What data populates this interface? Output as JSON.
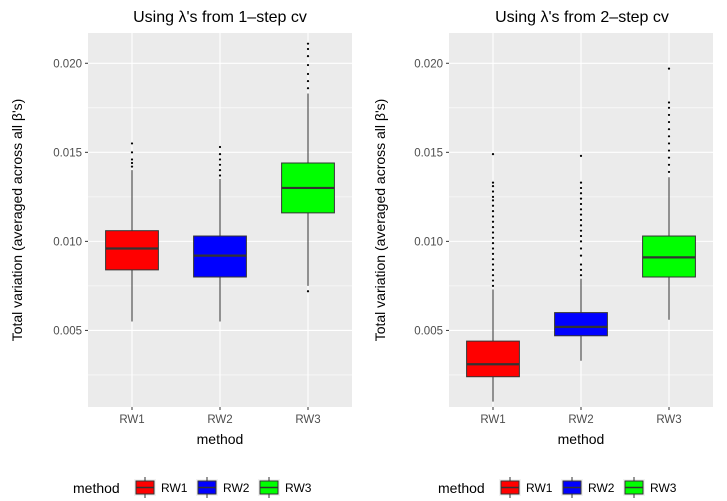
{
  "chart_data": [
    {
      "type": "box",
      "title": "Using λ's from 1–step cv",
      "xlabel": "method",
      "ylabel": "Total variation (averaged across all β's)",
      "ylim": [
        0.0007,
        0.0217
      ],
      "yticks": [
        0.005,
        0.01,
        0.015,
        0.02
      ],
      "ytick_labels": [
        "0.005",
        "0.010",
        "0.015",
        "0.020"
      ],
      "grid": true,
      "categories": [
        "RW1",
        "RW2",
        "RW3"
      ],
      "boxes": [
        {
          "name": "RW1",
          "color": "#ff0000",
          "whisker_low": 0.0055,
          "q1": 0.0084,
          "median": 0.0096,
          "q3": 0.0106,
          "whisker_high": 0.014,
          "outliers": [
            0.0142,
            0.0144,
            0.0146,
            0.015,
            0.0155
          ]
        },
        {
          "name": "RW2",
          "color": "#0000ff",
          "whisker_low": 0.0055,
          "q1": 0.008,
          "median": 0.0092,
          "q3": 0.0103,
          "whisker_high": 0.0135,
          "outliers": [
            0.0137,
            0.014,
            0.0143,
            0.0146,
            0.0149,
            0.0153
          ]
        },
        {
          "name": "RW3",
          "color": "#00ff00",
          "whisker_low": 0.0075,
          "q1": 0.0116,
          "median": 0.013,
          "q3": 0.0144,
          "whisker_high": 0.0183,
          "outliers": [
            0.0072,
            0.0186,
            0.019,
            0.0194,
            0.0199,
            0.0204,
            0.0208,
            0.0211
          ]
        }
      ]
    },
    {
      "type": "box",
      "title": "Using λ's from 2–step cv",
      "xlabel": "method",
      "ylabel": "Total variation (averaged across all β's)",
      "ylim": [
        0.0007,
        0.0217
      ],
      "yticks": [
        0.005,
        0.01,
        0.015,
        0.02
      ],
      "ytick_labels": [
        "0.005",
        "0.010",
        "0.015",
        "0.020"
      ],
      "grid": true,
      "categories": [
        "RW1",
        "RW2",
        "RW3"
      ],
      "boxes": [
        {
          "name": "RW1",
          "color": "#ff0000",
          "whisker_low": 0.001,
          "q1": 0.0024,
          "median": 0.0031,
          "q3": 0.0044,
          "whisker_high": 0.0073,
          "outliers": [
            0.0075,
            0.0078,
            0.0081,
            0.0084,
            0.0087,
            0.009,
            0.0093,
            0.0096,
            0.0099,
            0.0102,
            0.0105,
            0.0108,
            0.0111,
            0.0114,
            0.0117,
            0.012,
            0.0123,
            0.0125,
            0.0128,
            0.0131,
            0.0133,
            0.0149
          ]
        },
        {
          "name": "RW2",
          "color": "#0000ff",
          "whisker_low": 0.0033,
          "q1": 0.0047,
          "median": 0.0052,
          "q3": 0.006,
          "whisker_high": 0.0079,
          "outliers": [
            0.0081,
            0.0084,
            0.0087,
            0.0092,
            0.0096,
            0.01,
            0.0103,
            0.0106,
            0.0109,
            0.0112,
            0.0115,
            0.0118,
            0.0121,
            0.0124,
            0.0127,
            0.013,
            0.0133,
            0.0148
          ]
        },
        {
          "name": "RW3",
          "color": "#00ff00",
          "whisker_low": 0.0056,
          "q1": 0.008,
          "median": 0.0091,
          "q3": 0.0103,
          "whisker_high": 0.0136,
          "outliers": [
            0.0139,
            0.0143,
            0.0147,
            0.0151,
            0.0155,
            0.0159,
            0.0163,
            0.0167,
            0.0171,
            0.0175,
            0.0178,
            0.0197
          ]
        }
      ]
    }
  ],
  "legend": {
    "title": "method",
    "placement": "bottom",
    "items": [
      {
        "label": "RW1",
        "color": "#ff0000"
      },
      {
        "label": "RW2",
        "color": "#0000ff"
      },
      {
        "label": "RW3",
        "color": "#00ff00"
      }
    ]
  },
  "colors": {
    "panel_background": "#ebebeb",
    "gridline": "#ffffff",
    "box_outline": "#333333",
    "outlier": "#000000"
  }
}
